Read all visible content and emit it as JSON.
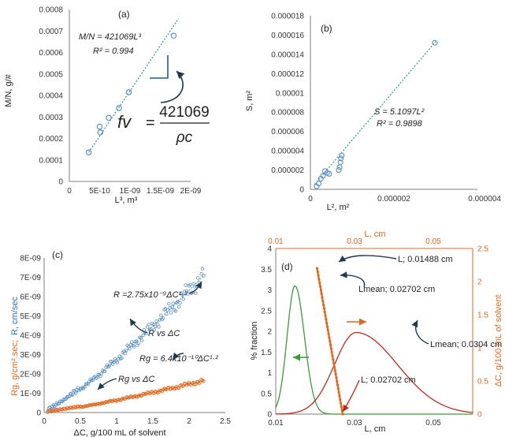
{
  "colors": {
    "blue_marker": "#5b8fc7",
    "blue_fit": "#2b9a8a",
    "orange": "#e2671c",
    "green": "#3d9a3d",
    "red": "#c0281c",
    "dark_teal": "#1f5f78",
    "axis": "#7f7f7f",
    "text": "#222222"
  },
  "chart_data": [
    {
      "id": "a",
      "type": "scatter",
      "panel_label": "(a)",
      "xlabel": "L³, m³",
      "ylabel": "M/N, g/#",
      "xlim": [
        0,
        2e-09
      ],
      "ylim": [
        0,
        0.0008
      ],
      "x_ticks": [
        "0",
        "5E-10",
        "1E-09",
        "1.5E-09",
        "2E-09"
      ],
      "y_ticks": [
        "0",
        "0.0001",
        "0.0002",
        "0.0003",
        "0.0004",
        "0.0005",
        "0.0006",
        "0.0007",
        "0.0008"
      ],
      "points": [
        [
          3.2e-10,
          0.000135
        ],
        [
          5.1e-10,
          0.000228
        ],
        [
          5e-10,
          0.000255
        ],
        [
          6.5e-10,
          0.000296
        ],
        [
          8.2e-10,
          0.000341
        ],
        [
          9.8e-10,
          0.000415
        ],
        [
          1.72e-09,
          0.000678
        ]
      ],
      "fit": {
        "label": "M/N = 421069L³",
        "slope": 421069,
        "x_range": [
          3.2e-10,
          1.8e-09
        ]
      },
      "r2_label": "R² = 0.994",
      "formula": {
        "lhs": "fv",
        "numerator": "421069",
        "denominator": "ρc"
      }
    },
    {
      "id": "b",
      "type": "scatter",
      "panel_label": "(b)",
      "xlabel": "L², m²",
      "ylabel": "S, m²",
      "xlim": [
        0,
        4e-06
      ],
      "ylim": [
        0,
        1.8e-05
      ],
      "x_ticks": [
        "0",
        "0.000002",
        "0.000004"
      ],
      "y_ticks": [
        "0",
        "0.000002",
        "0.000004",
        "0.000006",
        "0.000008",
        "0.00001",
        "0.000012",
        "0.000014",
        "0.000016",
        "0.000018"
      ],
      "points": [
        [
          1.5e-07,
          3e-07
        ],
        [
          2e-07,
          6e-07
        ],
        [
          2.5e-07,
          1.1e-06
        ],
        [
          3e-07,
          1.4e-06
        ],
        [
          3.5e-07,
          1.9e-06
        ],
        [
          4e-07,
          1.7e-06
        ],
        [
          4.5e-07,
          1.6e-06
        ],
        [
          6.8e-07,
          2e-06
        ],
        [
          7e-07,
          2.3e-06
        ],
        [
          7.2e-07,
          2.8e-06
        ],
        [
          7.3e-07,
          3.2e-06
        ],
        [
          7.5e-07,
          3.5e-06
        ],
        [
          2.98e-06,
          1.52e-05
        ]
      ],
      "fit": {
        "label": "S = 5.1097L²",
        "slope": 5.1097,
        "x_range": [
          1e-07,
          3e-06
        ]
      },
      "r2_label": "R² = 0.9898"
    },
    {
      "id": "c",
      "type": "scatter",
      "panel_label": "(c)",
      "xlabel": "ΔC, g/100 mL of solvent",
      "ylabel_left": "Rg, g/cm².sec;",
      "ylabel_right": "R, cm/sec",
      "xlim": [
        0,
        2.5
      ],
      "ylim": [
        0,
        8e-09
      ],
      "x_ticks": [
        "0",
        "0.5",
        "1",
        "1.5",
        "2",
        "2.5"
      ],
      "y_ticks": [
        "0",
        "1E-09",
        "2E-09",
        "3E-09",
        "4E-09",
        "5E-09",
        "6E-09",
        "7E-09",
        "8E-09"
      ],
      "series": [
        {
          "name": "R",
          "coef": 2.75e-09,
          "exponent": 1.2,
          "x_range": [
            0.05,
            2.2
          ],
          "color_key": "blue_marker"
        },
        {
          "name": "Rg",
          "coef": 6.4e-10,
          "exponent": 1.2,
          "x_range": [
            0.05,
            2.2
          ],
          "color_key": "orange"
        }
      ],
      "annotations": {
        "r_eq": "R =2.75x10⁻⁹ΔC¹·²",
        "r_vs": "R vs ΔC",
        "rg_eq": "Rg = 6.4x10⁻¹⁰ΔC¹·²",
        "rg_vs": "Rg vs ΔC"
      }
    },
    {
      "id": "d",
      "type": "line",
      "panel_label": "(d)",
      "xlabel": "L, cm",
      "top_xlabel": "L, cm",
      "ylabel_left": "% fraction",
      "ylabel_right": "ΔC, g/100 mL of solvent",
      "xlim": [
        0.01,
        0.06
      ],
      "ylim_left": [
        0,
        4
      ],
      "ylim_right": [
        0,
        2.5
      ],
      "x_ticks": [
        "0.01",
        "0.03",
        "0.05"
      ],
      "top_ticks": [
        "0.01",
        "0.03",
        "0.05"
      ],
      "y_left_ticks": [
        "0",
        "0.5",
        "1",
        "1.5",
        "2",
        "2.5",
        "3",
        "3.5",
        "4"
      ],
      "y_right_ticks": [
        "0",
        "0.5",
        "1",
        "1.5",
        "2",
        "2.5"
      ],
      "green_curve": {
        "peak_x": 0.01488,
        "peak_y": 3.1,
        "sigma_left": 0.002,
        "sigma_right": 0.0024
      },
      "red_curve": {
        "peak_x": 0.0304,
        "peak_y": 1.97,
        "sigma_left": 0.0055,
        "sigma_right": 0.0105
      },
      "orange_line": {
        "x_start": 0.0205,
        "y_start": 2.2,
        "x_end": 0.027,
        "y_end": 0.0
      },
      "annotations": {
        "a1": "L; 0.01488 cm",
        "a2": "Lmean; 0.02702 cm",
        "a3": "Lmean; 0.0304 cm",
        "a4": "L; 0.02702 cm"
      }
    }
  ]
}
